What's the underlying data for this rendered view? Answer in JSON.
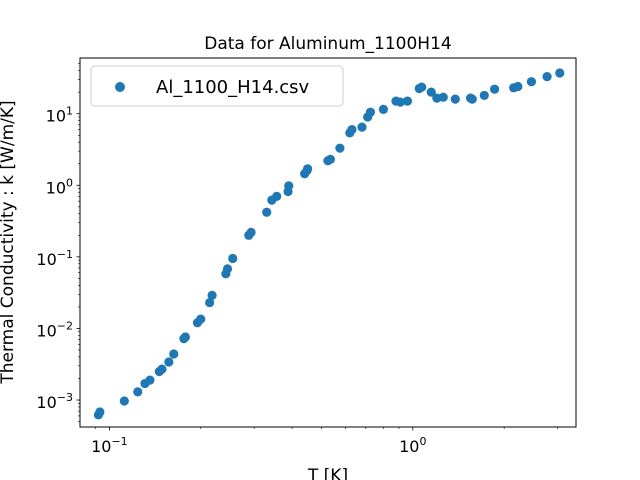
{
  "chart_data": {
    "type": "scatter",
    "title": "Data for Aluminum_1100H14",
    "xlabel": "T [K]",
    "ylabel": "Thermal Conductivity : k [W/m/K]",
    "xscale": "log",
    "yscale": "log",
    "xlim": [
      0.08,
      3.45
    ],
    "ylim": [
      0.00042,
      60
    ],
    "legend_position": "top-left",
    "grid": false,
    "x_ticks": [
      {
        "value": 0.1,
        "label": "10",
        "exp": "−1"
      },
      {
        "value": 1,
        "label": "10",
        "exp": "0"
      }
    ],
    "y_ticks": [
      {
        "value": 0.001,
        "label": "10",
        "exp": "−3"
      },
      {
        "value": 0.01,
        "label": "10",
        "exp": "−2"
      },
      {
        "value": 0.1,
        "label": "10",
        "exp": "−1"
      },
      {
        "value": 1,
        "label": "10",
        "exp": "0"
      },
      {
        "value": 10,
        "label": "10",
        "exp": "1"
      }
    ],
    "series": [
      {
        "name": "Al_1100_H14.csv",
        "color": "#1f77b4",
        "marker": "circle",
        "points": [
          [
            0.092,
            0.00062
          ],
          [
            0.093,
            0.00068
          ],
          [
            0.112,
            0.00097
          ],
          [
            0.124,
            0.0013
          ],
          [
            0.131,
            0.0017
          ],
          [
            0.136,
            0.0019
          ],
          [
            0.146,
            0.0025
          ],
          [
            0.149,
            0.0027
          ],
          [
            0.157,
            0.0034
          ],
          [
            0.163,
            0.0044
          ],
          [
            0.176,
            0.0072
          ],
          [
            0.178,
            0.0076
          ],
          [
            0.195,
            0.012
          ],
          [
            0.2,
            0.0135
          ],
          [
            0.214,
            0.023
          ],
          [
            0.218,
            0.029
          ],
          [
            0.242,
            0.058
          ],
          [
            0.245,
            0.068
          ],
          [
            0.255,
            0.095
          ],
          [
            0.288,
            0.2
          ],
          [
            0.293,
            0.22
          ],
          [
            0.33,
            0.42
          ],
          [
            0.343,
            0.62
          ],
          [
            0.356,
            0.7
          ],
          [
            0.388,
            0.82
          ],
          [
            0.39,
            0.98
          ],
          [
            0.44,
            1.45
          ],
          [
            0.448,
            1.6
          ],
          [
            0.45,
            1.7
          ],
          [
            0.525,
            2.2
          ],
          [
            0.535,
            2.3
          ],
          [
            0.575,
            3.3
          ],
          [
            0.62,
            5.4
          ],
          [
            0.63,
            6.0
          ],
          [
            0.68,
            6.5
          ],
          [
            0.71,
            9.0
          ],
          [
            0.725,
            10.5
          ],
          [
            0.8,
            11.5
          ],
          [
            0.88,
            15.0
          ],
          [
            0.91,
            14.5
          ],
          [
            0.96,
            15.0
          ],
          [
            1.05,
            22.5
          ],
          [
            1.07,
            23.5
          ],
          [
            1.15,
            20.0
          ],
          [
            1.2,
            16.5
          ],
          [
            1.26,
            17.0
          ],
          [
            1.38,
            16.0
          ],
          [
            1.55,
            16.5
          ],
          [
            1.57,
            16.0
          ],
          [
            1.72,
            18.0
          ],
          [
            1.86,
            22.0
          ],
          [
            2.15,
            23.0
          ],
          [
            2.22,
            24.0
          ],
          [
            2.46,
            28.0
          ],
          [
            2.77,
            33.0
          ],
          [
            3.05,
            37.0
          ]
        ]
      }
    ]
  }
}
